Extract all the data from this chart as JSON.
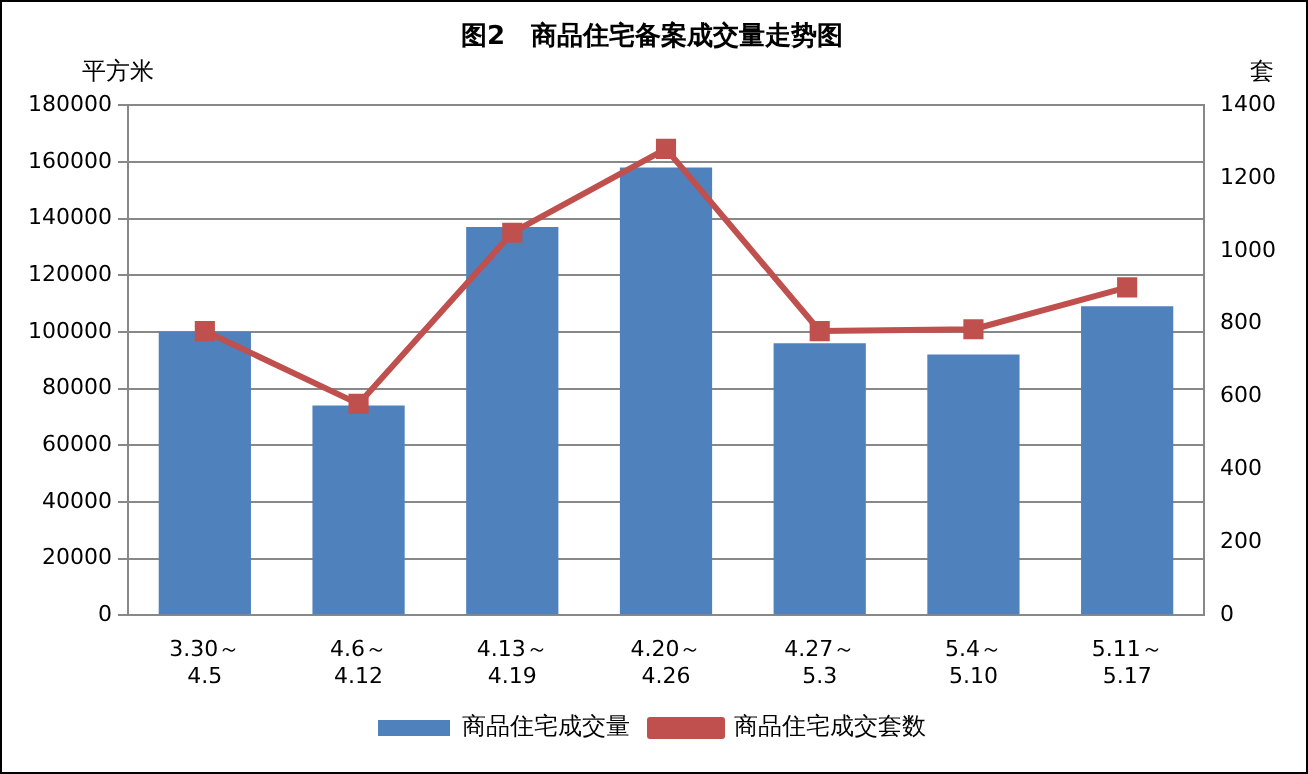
{
  "chart_data": {
    "type": "bar",
    "title": "图2　商品住宅备案成交量走势图",
    "ylabel": "平方米",
    "y2label": "套",
    "categories": [
      "3.30～\n4.5",
      "4.6～\n4.12",
      "4.13～\n4.19",
      "4.20～\n4.26",
      "4.27～\n5.3",
      "5.4～\n5.10",
      "5.11～\n5.17"
    ],
    "series": [
      {
        "name": "商品住宅成交量",
        "color": "#4f81bd",
        "values": [
          100000,
          74000,
          137000,
          158000,
          96000,
          92000,
          109000
        ]
      },
      {
        "name": "商品住宅成交套数",
        "type": "line",
        "axis": "y2",
        "color": "#c0504d",
        "values": [
          780,
          580,
          1050,
          1280,
          780,
          785,
          900
        ]
      }
    ],
    "ylim": [
      0,
      180000
    ],
    "yticks": [
      0,
      20000,
      40000,
      60000,
      80000,
      100000,
      120000,
      140000,
      160000,
      180000
    ],
    "y2lim": [
      0,
      1400
    ],
    "y2ticks": [
      0,
      200,
      400,
      600,
      800,
      1000,
      1200,
      1400
    ],
    "grid": "y",
    "legend": "bottom",
    "marker": "square",
    "line_style": "solid"
  }
}
